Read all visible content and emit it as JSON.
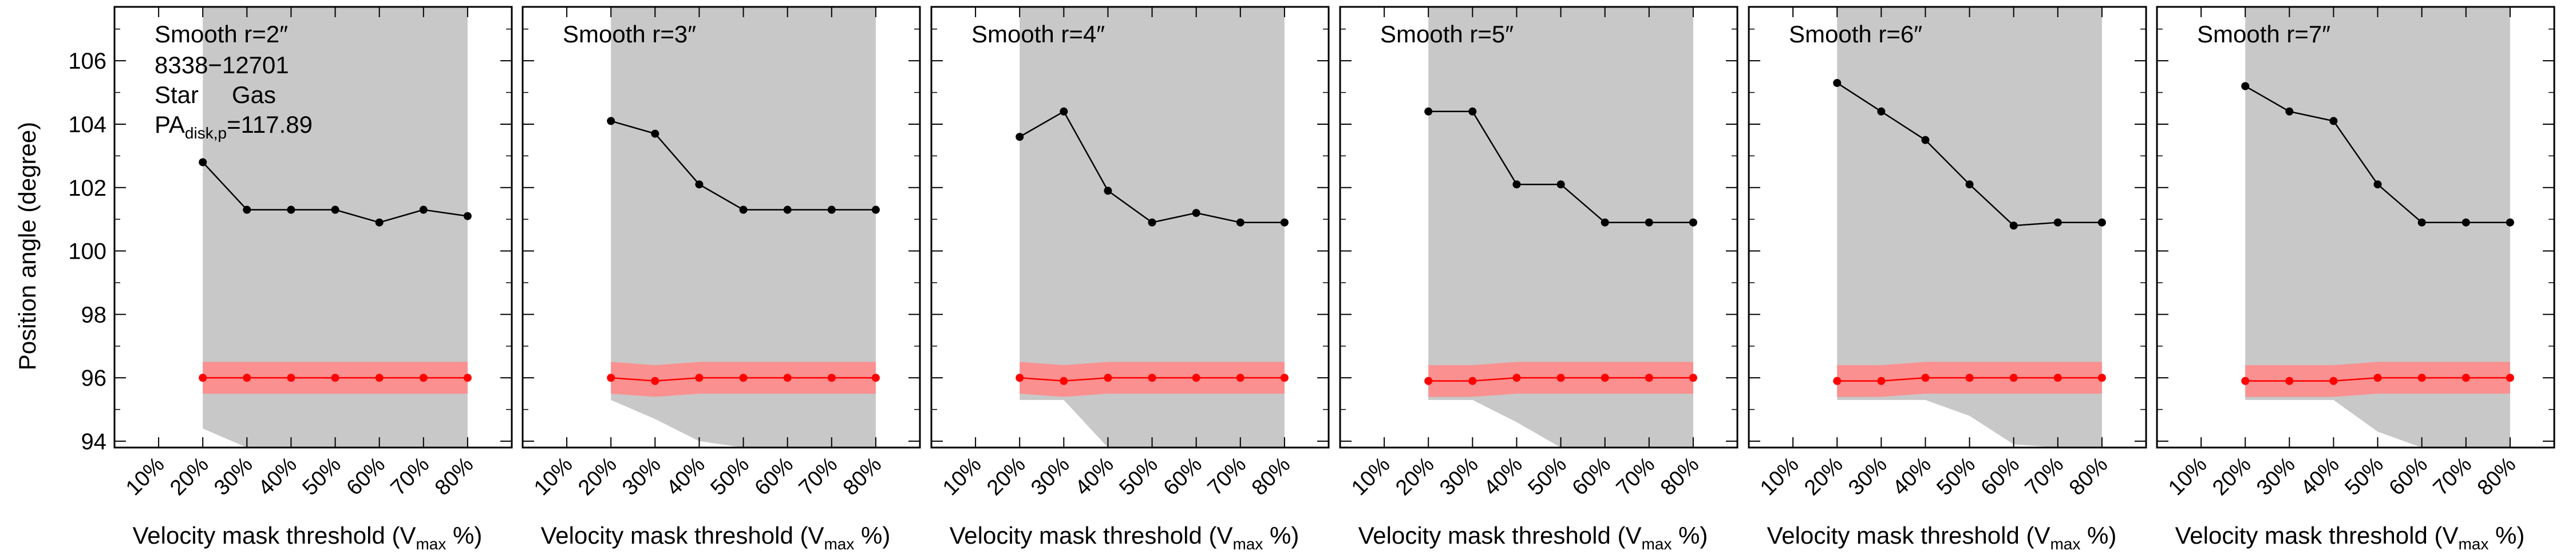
{
  "figure": {
    "ylabel": "Position angle (degree)",
    "xlabel_main": "Velocity mask threshold (V",
    "xlabel_sub": "max",
    "xlabel_end": " %)",
    "legend": {
      "galaxy_id": "8338−12701",
      "star_label": "Star",
      "gas_label": "Gas",
      "pa_main": "PA",
      "pa_sub": "disk,p",
      "pa_value": "=117.89"
    },
    "colors": {
      "star": "#000000",
      "gas": "#ff0000",
      "gas_band": "#ff8a8a",
      "shade": "#c8c8c8"
    }
  },
  "chart_data": [
    {
      "type": "line",
      "title": "Smooth r=2″",
      "categories": [
        "10%",
        "20%",
        "30%",
        "40%",
        "50%",
        "60%",
        "70%",
        "80%"
      ],
      "ylim": [
        93.8,
        107.7
      ],
      "yticks": [
        94,
        96,
        98,
        100,
        102,
        104,
        106
      ],
      "shade_from": "20%",
      "shade_bottom": [
        94.4,
        93.8,
        93.8,
        93.8,
        93.8,
        93.8,
        93.8
      ],
      "series": [
        {
          "name": "Star",
          "color": "#000000",
          "values": [
            null,
            102.8,
            101.3,
            101.3,
            101.3,
            100.9,
            101.3,
            101.1
          ]
        },
        {
          "name": "Gas",
          "color": "#ff0000",
          "values": [
            null,
            96.0,
            96.0,
            96.0,
            96.0,
            96.0,
            96.0,
            96.0
          ],
          "band_low": [
            null,
            95.5,
            95.5,
            95.5,
            95.5,
            95.5,
            95.5,
            95.5
          ],
          "band_high": [
            null,
            96.5,
            96.5,
            96.5,
            96.5,
            96.5,
            96.5,
            96.5
          ]
        }
      ]
    },
    {
      "type": "line",
      "title": "Smooth r=3″",
      "categories": [
        "10%",
        "20%",
        "30%",
        "40%",
        "50%",
        "60%",
        "70%",
        "80%"
      ],
      "ylim": [
        93.8,
        107.7
      ],
      "yticks": [
        94,
        96,
        98,
        100,
        102,
        104,
        106
      ],
      "shade_from": "20%",
      "shade_bottom": [
        95.3,
        94.7,
        94.0,
        93.8,
        93.8,
        93.8,
        93.8
      ],
      "series": [
        {
          "name": "Star",
          "color": "#000000",
          "values": [
            null,
            104.1,
            103.7,
            102.1,
            101.3,
            101.3,
            101.3,
            101.3
          ]
        },
        {
          "name": "Gas",
          "color": "#ff0000",
          "values": [
            null,
            96.0,
            95.9,
            96.0,
            96.0,
            96.0,
            96.0,
            96.0
          ],
          "band_low": [
            null,
            95.5,
            95.4,
            95.5,
            95.5,
            95.5,
            95.5,
            95.5
          ],
          "band_high": [
            null,
            96.5,
            96.4,
            96.5,
            96.5,
            96.5,
            96.5,
            96.5
          ]
        }
      ]
    },
    {
      "type": "line",
      "title": "Smooth r=4″",
      "categories": [
        "10%",
        "20%",
        "30%",
        "40%",
        "50%",
        "60%",
        "70%",
        "80%"
      ],
      "ylim": [
        93.8,
        107.7
      ],
      "yticks": [
        94,
        96,
        98,
        100,
        102,
        104,
        106
      ],
      "shade_from": "20%",
      "shade_bottom": [
        95.3,
        95.3,
        93.8,
        93.8,
        93.8,
        93.8,
        93.8
      ],
      "series": [
        {
          "name": "Star",
          "color": "#000000",
          "values": [
            null,
            103.6,
            104.4,
            101.9,
            100.9,
            101.2,
            100.9,
            100.9
          ]
        },
        {
          "name": "Gas",
          "color": "#ff0000",
          "values": [
            null,
            96.0,
            95.9,
            96.0,
            96.0,
            96.0,
            96.0,
            96.0
          ],
          "band_low": [
            null,
            95.5,
            95.4,
            95.5,
            95.5,
            95.5,
            95.5,
            95.5
          ],
          "band_high": [
            null,
            96.5,
            96.4,
            96.5,
            96.5,
            96.5,
            96.5,
            96.5
          ]
        }
      ]
    },
    {
      "type": "line",
      "title": "Smooth r=5″",
      "categories": [
        "10%",
        "20%",
        "30%",
        "40%",
        "50%",
        "60%",
        "70%",
        "80%"
      ],
      "ylim": [
        93.8,
        107.7
      ],
      "yticks": [
        94,
        96,
        98,
        100,
        102,
        104,
        106
      ],
      "shade_from": "20%",
      "shade_bottom": [
        95.3,
        95.3,
        94.6,
        93.8,
        93.8,
        93.8,
        93.8
      ],
      "series": [
        {
          "name": "Star",
          "color": "#000000",
          "values": [
            null,
            104.4,
            104.4,
            102.1,
            102.1,
            100.9,
            100.9,
            100.9
          ]
        },
        {
          "name": "Gas",
          "color": "#ff0000",
          "values": [
            null,
            95.9,
            95.9,
            96.0,
            96.0,
            96.0,
            96.0,
            96.0
          ],
          "band_low": [
            null,
            95.4,
            95.4,
            95.5,
            95.5,
            95.5,
            95.5,
            95.5
          ],
          "band_high": [
            null,
            96.4,
            96.4,
            96.5,
            96.5,
            96.5,
            96.5,
            96.5
          ]
        }
      ]
    },
    {
      "type": "line",
      "title": "Smooth r=6″",
      "categories": [
        "10%",
        "20%",
        "30%",
        "40%",
        "50%",
        "60%",
        "70%",
        "80%"
      ],
      "ylim": [
        93.8,
        107.7
      ],
      "yticks": [
        94,
        96,
        98,
        100,
        102,
        104,
        106
      ],
      "shade_from": "20%",
      "shade_bottom": [
        95.3,
        95.3,
        95.3,
        94.8,
        93.9,
        93.8,
        93.8
      ],
      "series": [
        {
          "name": "Star",
          "color": "#000000",
          "values": [
            null,
            105.3,
            104.4,
            103.5,
            102.1,
            100.8,
            100.9,
            100.9
          ]
        },
        {
          "name": "Gas",
          "color": "#ff0000",
          "values": [
            null,
            95.9,
            95.9,
            96.0,
            96.0,
            96.0,
            96.0,
            96.0
          ],
          "band_low": [
            null,
            95.4,
            95.4,
            95.5,
            95.5,
            95.5,
            95.5,
            95.5
          ],
          "band_high": [
            null,
            96.4,
            96.4,
            96.5,
            96.5,
            96.5,
            96.5,
            96.5
          ]
        }
      ]
    },
    {
      "type": "line",
      "title": "Smooth r=7″",
      "categories": [
        "10%",
        "20%",
        "30%",
        "40%",
        "50%",
        "60%",
        "70%",
        "80%"
      ],
      "ylim": [
        93.8,
        107.7
      ],
      "yticks": [
        94,
        96,
        98,
        100,
        102,
        104,
        106
      ],
      "shade_from": "20%",
      "shade_bottom": [
        95.3,
        95.3,
        95.3,
        94.3,
        93.8,
        93.8,
        93.8
      ],
      "series": [
        {
          "name": "Star",
          "color": "#000000",
          "values": [
            null,
            105.2,
            104.4,
            104.1,
            102.1,
            100.9,
            100.9,
            100.9
          ]
        },
        {
          "name": "Gas",
          "color": "#ff0000",
          "values": [
            null,
            95.9,
            95.9,
            95.9,
            96.0,
            96.0,
            96.0,
            96.0
          ],
          "band_low": [
            null,
            95.4,
            95.4,
            95.4,
            95.5,
            95.5,
            95.5,
            95.5
          ],
          "band_high": [
            null,
            96.4,
            96.4,
            96.4,
            96.5,
            96.5,
            96.5,
            96.5
          ]
        }
      ]
    }
  ]
}
